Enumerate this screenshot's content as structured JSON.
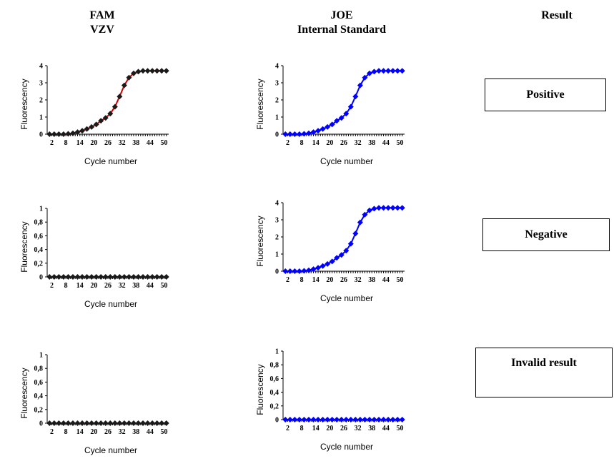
{
  "headers": {
    "fam_line1": "FAM",
    "fam_line2": "VZV",
    "joe_line1": "JOE",
    "joe_line2": "Internal Standard",
    "result": "Result"
  },
  "results": {
    "positive": "Positive",
    "negative": "Negative",
    "invalid": "Invalid result"
  },
  "chart_data": [
    {
      "type": "line",
      "panel": "FAM VZV, row 1",
      "xlabel": "Cycle number",
      "ylabel": "Fluorescency",
      "x": [
        1,
        3,
        5,
        7,
        9,
        11,
        13,
        15,
        17,
        19,
        21,
        23,
        25,
        27,
        29,
        31,
        33,
        35,
        37,
        39,
        41,
        43,
        45,
        47,
        49,
        51
      ],
      "series": [
        {
          "values": [
            0,
            0,
            0,
            0,
            0.02,
            0.05,
            0.12,
            0.2,
            0.3,
            0.42,
            0.57,
            0.78,
            0.95,
            1.2,
            1.6,
            2.2,
            2.85,
            3.3,
            3.55,
            3.65,
            3.7,
            3.7,
            3.7,
            3.7,
            3.7,
            3.7
          ],
          "color": "#cc0000",
          "marker_color": "#1a1a1a"
        }
      ],
      "ylim": [
        0,
        4
      ],
      "yticks": [
        "0",
        "1",
        "2",
        "3",
        "4"
      ],
      "xtick_labels": [
        "2",
        "8",
        "14",
        "20",
        "26",
        "32",
        "38",
        "44",
        "50"
      ],
      "xlim": [
        0,
        52
      ]
    },
    {
      "type": "line",
      "panel": "JOE Internal Standard, row 1",
      "xlabel": "Cycle number",
      "ylabel": "Fluorescency",
      "x": [
        1,
        3,
        5,
        7,
        9,
        11,
        13,
        15,
        17,
        19,
        21,
        23,
        25,
        27,
        29,
        31,
        33,
        35,
        37,
        39,
        41,
        43,
        45,
        47,
        49,
        51
      ],
      "series": [
        {
          "values": [
            0,
            0,
            0,
            0,
            0.02,
            0.05,
            0.12,
            0.2,
            0.3,
            0.42,
            0.57,
            0.78,
            0.95,
            1.2,
            1.6,
            2.2,
            2.85,
            3.3,
            3.55,
            3.65,
            3.7,
            3.7,
            3.7,
            3.7,
            3.7,
            3.7
          ],
          "color": "#0000ff",
          "marker_color": "#0000ff"
        }
      ],
      "ylim": [
        0,
        4
      ],
      "yticks": [
        "0",
        "1",
        "2",
        "3",
        "4"
      ],
      "xtick_labels": [
        "2",
        "8",
        "14",
        "20",
        "26",
        "32",
        "38",
        "44",
        "50"
      ],
      "xlim": [
        0,
        52
      ]
    },
    {
      "type": "line",
      "panel": "FAM VZV, row 2",
      "xlabel": "Cycle number",
      "ylabel": "Fluorescency",
      "x": [
        1,
        3,
        5,
        7,
        9,
        11,
        13,
        15,
        17,
        19,
        21,
        23,
        25,
        27,
        29,
        31,
        33,
        35,
        37,
        39,
        41,
        43,
        45,
        47,
        49,
        51
      ],
      "series": [
        {
          "values": [
            0,
            0,
            0,
            0,
            0,
            0,
            0,
            0,
            0,
            0,
            0,
            0,
            0,
            0,
            0,
            0,
            0,
            0,
            0,
            0,
            0,
            0,
            0,
            0,
            0,
            0
          ],
          "color": "#cc0000",
          "marker_color": "#1a1a1a"
        }
      ],
      "ylim": [
        0,
        1
      ],
      "yticks": [
        "0",
        "0,2",
        "0,4",
        "0,6",
        "0,8",
        "1"
      ],
      "xtick_labels": [
        "2",
        "8",
        "14",
        "20",
        "26",
        "32",
        "38",
        "44",
        "50"
      ],
      "xlim": [
        0,
        52
      ]
    },
    {
      "type": "line",
      "panel": "JOE Internal Standard, row 2",
      "xlabel": "Cycle number",
      "ylabel": "Fluorescency",
      "x": [
        1,
        3,
        5,
        7,
        9,
        11,
        13,
        15,
        17,
        19,
        21,
        23,
        25,
        27,
        29,
        31,
        33,
        35,
        37,
        39,
        41,
        43,
        45,
        47,
        49,
        51
      ],
      "series": [
        {
          "values": [
            0,
            0,
            0,
            0,
            0.02,
            0.05,
            0.12,
            0.2,
            0.3,
            0.42,
            0.57,
            0.78,
            0.95,
            1.2,
            1.6,
            2.2,
            2.85,
            3.3,
            3.55,
            3.65,
            3.7,
            3.7,
            3.7,
            3.7,
            3.7,
            3.7
          ],
          "color": "#0000ff",
          "marker_color": "#0000ff"
        }
      ],
      "ylim": [
        0,
        4
      ],
      "yticks": [
        "0",
        "1",
        "2",
        "3",
        "4"
      ],
      "xtick_labels": [
        "2",
        "8",
        "14",
        "20",
        "26",
        "32",
        "38",
        "44",
        "50"
      ],
      "xlim": [
        0,
        52
      ]
    },
    {
      "type": "line",
      "panel": "FAM VZV, row 3",
      "xlabel": "Cycle number",
      "ylabel": "Fluorescency",
      "x": [
        1,
        3,
        5,
        7,
        9,
        11,
        13,
        15,
        17,
        19,
        21,
        23,
        25,
        27,
        29,
        31,
        33,
        35,
        37,
        39,
        41,
        43,
        45,
        47,
        49,
        51
      ],
      "series": [
        {
          "values": [
            0,
            0,
            0,
            0,
            0,
            0,
            0,
            0,
            0,
            0,
            0,
            0,
            0,
            0,
            0,
            0,
            0,
            0,
            0,
            0,
            0,
            0,
            0,
            0,
            0,
            0
          ],
          "color": "#cc0000",
          "marker_color": "#1a1a1a"
        }
      ],
      "ylim": [
        0,
        1
      ],
      "yticks": [
        "0",
        "0,2",
        "0,4",
        "0,6",
        "0,8",
        "1"
      ],
      "xtick_labels": [
        "2",
        "8",
        "14",
        "20",
        "26",
        "32",
        "38",
        "44",
        "50"
      ],
      "xlim": [
        0,
        52
      ]
    },
    {
      "type": "line",
      "panel": "JOE Internal Standard, row 3",
      "xlabel": "Cycle number",
      "ylabel": "Fluorescency",
      "x": [
        1,
        3,
        5,
        7,
        9,
        11,
        13,
        15,
        17,
        19,
        21,
        23,
        25,
        27,
        29,
        31,
        33,
        35,
        37,
        39,
        41,
        43,
        45,
        47,
        49,
        51
      ],
      "series": [
        {
          "values": [
            0,
            0,
            0,
            0,
            0,
            0,
            0,
            0,
            0,
            0,
            0,
            0,
            0,
            0,
            0,
            0,
            0,
            0,
            0,
            0,
            0,
            0,
            0,
            0,
            0,
            0
          ],
          "color": "#0000ff",
          "marker_color": "#0000ff"
        }
      ],
      "ylim": [
        0,
        1
      ],
      "yticks": [
        "0",
        "0,2",
        "0,4",
        "0,6",
        "0,8",
        "1"
      ],
      "xtick_labels": [
        "2",
        "8",
        "14",
        "20",
        "26",
        "32",
        "38",
        "44",
        "50"
      ],
      "xlim": [
        0,
        52
      ]
    }
  ]
}
